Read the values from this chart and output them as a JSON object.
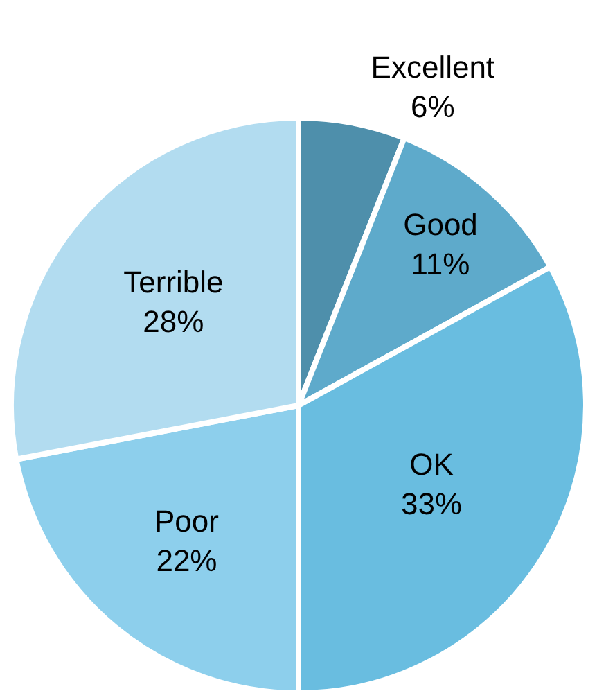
{
  "chart_data": {
    "type": "pie",
    "categories": [
      "Excellent",
      "Good",
      "OK",
      "Poor",
      "Terrible"
    ],
    "values": [
      6,
      11,
      33,
      22,
      28
    ],
    "value_labels": [
      "6%",
      "11%",
      "33%",
      "22%",
      "28%"
    ],
    "colors": [
      "#4e8fab",
      "#5eaacb",
      "#69bde0",
      "#8dcfec",
      "#b2dcf0"
    ],
    "legend": false
  }
}
